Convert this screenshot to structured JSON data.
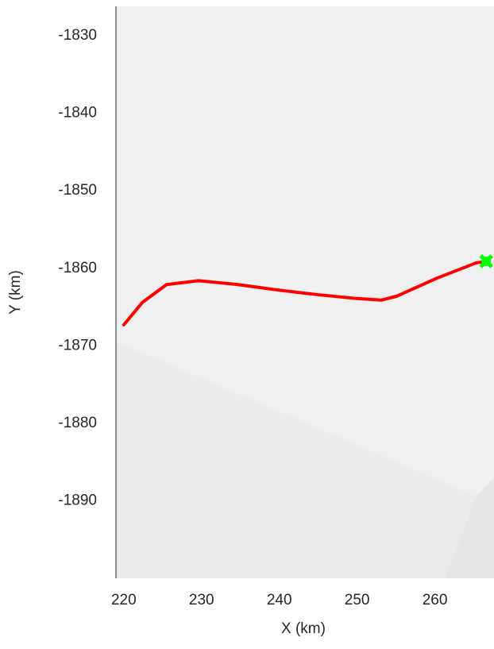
{
  "chart_data": {
    "type": "line",
    "xlabel": "X (km)",
    "ylabel": "Y (km)",
    "xlim": [
      219,
      267.6
    ],
    "ylim": [
      -1900,
      -1826.2
    ],
    "xticks": [
      220,
      230,
      240,
      250,
      260
    ],
    "yticks": [
      -1890,
      -1880,
      -1870,
      -1860,
      -1850,
      -1840,
      -1830
    ],
    "series": [
      {
        "color": "#ff0000",
        "x": [
          220,
          222.4,
          225.5,
          229.6,
          234.7,
          239.8,
          244.9,
          250,
          253.1,
          255.1,
          260.2,
          265.3,
          266.6
        ],
        "values": [
          -1867.3,
          -1864.4,
          -1862.1,
          -1861.6,
          -1862.1,
          -1862.8,
          -1863.4,
          -1863.9,
          -1864.1,
          -1863.6,
          -1861.3,
          -1859.3,
          -1859.1
        ]
      },
      {
        "color": "#00ff00",
        "marker": "x",
        "x": [
          266.6
        ],
        "values": [
          -1859.1
        ]
      }
    ]
  }
}
